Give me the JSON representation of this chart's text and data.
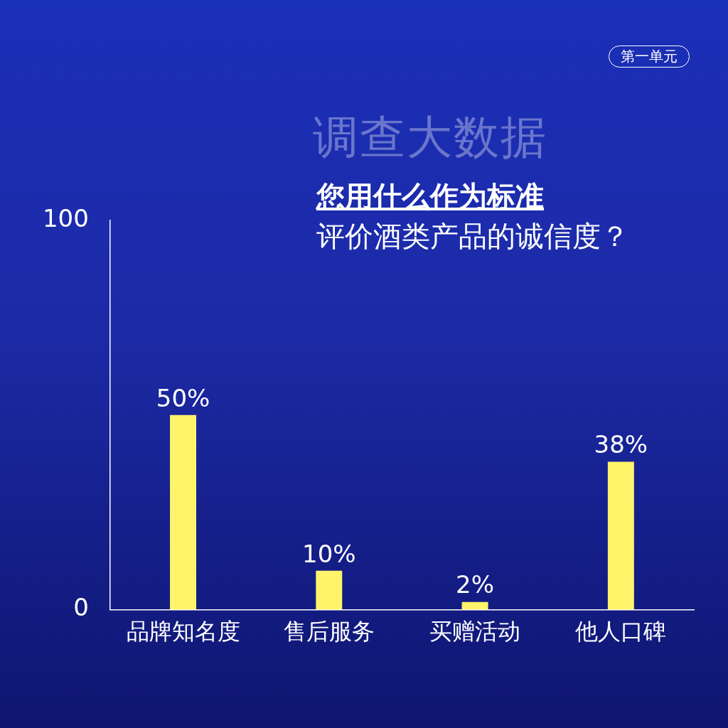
{
  "chart_data": {
    "type": "bar",
    "title": "调查大数据",
    "subtitle": "您用什么作为标准",
    "annotations": [
      "评价酒类产品的诚信度？",
      "第一单元"
    ],
    "categories": [
      "品牌知名度",
      "售后服务",
      "买赠活动",
      "他人口碑"
    ],
    "values": [
      50,
      10,
      2,
      38
    ],
    "value_labels": [
      "50%",
      "10%",
      "2%",
      "38%"
    ],
    "color": "#fff46a",
    "ylim": [
      0,
      100
    ],
    "yticks": [
      0,
      100
    ],
    "grid": false,
    "legend": false
  }
}
